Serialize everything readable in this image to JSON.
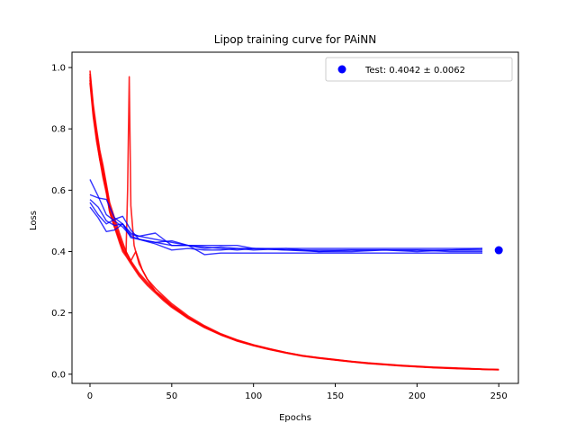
{
  "chart_data": {
    "type": "line",
    "title": "Lipop training curve for PAiNN",
    "xlabel": "Epochs",
    "ylabel": "Loss",
    "xlim": [
      -11,
      262
    ],
    "ylim": [
      -0.03,
      1.05
    ],
    "xticks": [
      0,
      50,
      100,
      150,
      200,
      250
    ],
    "yticks": [
      0.0,
      0.2,
      0.4,
      0.6,
      0.8,
      1.0
    ],
    "grid": false,
    "legend": {
      "placement": "upper right",
      "label": "Test: 0.4042 ± 0.0062"
    },
    "colors": {
      "train": "#ff0000",
      "validation": "#0000ff",
      "test": "#0000ff"
    },
    "train_curves": [
      {
        "x": [
          0,
          2,
          4,
          6,
          8,
          10,
          12,
          15,
          18,
          20,
          22,
          25,
          30,
          35,
          40,
          45,
          50,
          55,
          60,
          70,
          80,
          90,
          100,
          110,
          120,
          130,
          140,
          150,
          160,
          170,
          180,
          190,
          200,
          210,
          220,
          230,
          240,
          250
        ],
        "y": [
          0.98,
          0.86,
          0.79,
          0.72,
          0.67,
          0.61,
          0.55,
          0.5,
          0.45,
          0.42,
          0.4,
          0.37,
          0.33,
          0.3,
          0.27,
          0.25,
          0.225,
          0.205,
          0.185,
          0.155,
          0.13,
          0.11,
          0.095,
          0.082,
          0.07,
          0.06,
          0.053,
          0.047,
          0.041,
          0.036,
          0.032,
          0.028,
          0.025,
          0.022,
          0.02,
          0.018,
          0.016,
          0.015
        ]
      },
      {
        "x": [
          0,
          2,
          4,
          6,
          8,
          10,
          12,
          15,
          18,
          20,
          22,
          23,
          24,
          25,
          27,
          30,
          33,
          35,
          40,
          45,
          50,
          55,
          60,
          70,
          80,
          90,
          100,
          110,
          120,
          130,
          140,
          150,
          160,
          170,
          180,
          190,
          200,
          210,
          220,
          230,
          240,
          250
        ],
        "y": [
          0.96,
          0.85,
          0.77,
          0.71,
          0.65,
          0.6,
          0.54,
          0.49,
          0.44,
          0.41,
          0.39,
          0.6,
          0.97,
          0.55,
          0.42,
          0.36,
          0.33,
          0.31,
          0.27,
          0.245,
          0.222,
          0.205,
          0.185,
          0.155,
          0.13,
          0.11,
          0.094,
          0.081,
          0.07,
          0.06,
          0.053,
          0.047,
          0.041,
          0.036,
          0.032,
          0.028,
          0.025,
          0.022,
          0.02,
          0.018,
          0.016,
          0.015
        ]
      },
      {
        "x": [
          0,
          2,
          4,
          6,
          8,
          10,
          12,
          15,
          18,
          20,
          22,
          25,
          28,
          30,
          32,
          35,
          40,
          45,
          50,
          55,
          60,
          70,
          80,
          90,
          100,
          110,
          120,
          130,
          140,
          150,
          160,
          170,
          180,
          190,
          200,
          210,
          220,
          230,
          240,
          250
        ],
        "y": [
          0.99,
          0.88,
          0.8,
          0.73,
          0.68,
          0.62,
          0.56,
          0.51,
          0.46,
          0.43,
          0.4,
          0.37,
          0.4,
          0.37,
          0.34,
          0.31,
          0.28,
          0.255,
          0.23,
          0.21,
          0.19,
          0.158,
          0.132,
          0.112,
          0.096,
          0.083,
          0.071,
          0.061,
          0.054,
          0.048,
          0.042,
          0.037,
          0.033,
          0.029,
          0.026,
          0.023,
          0.021,
          0.019,
          0.017,
          0.015
        ]
      },
      {
        "x": [
          0,
          2,
          4,
          6,
          8,
          10,
          12,
          15,
          18,
          20,
          22,
          25,
          30,
          35,
          40,
          45,
          50,
          55,
          60,
          70,
          80,
          90,
          100,
          110,
          120,
          130,
          140,
          150,
          160,
          170,
          180,
          190,
          200,
          210,
          220,
          230,
          240,
          250
        ],
        "y": [
          0.97,
          0.85,
          0.78,
          0.7,
          0.66,
          0.6,
          0.53,
          0.48,
          0.43,
          0.4,
          0.385,
          0.36,
          0.32,
          0.29,
          0.265,
          0.24,
          0.218,
          0.2,
          0.182,
          0.152,
          0.128,
          0.108,
          0.093,
          0.08,
          0.069,
          0.059,
          0.052,
          0.046,
          0.04,
          0.035,
          0.031,
          0.027,
          0.024,
          0.021,
          0.019,
          0.017,
          0.016,
          0.014
        ]
      },
      {
        "x": [
          0,
          2,
          4,
          6,
          8,
          10,
          12,
          15,
          18,
          20,
          22,
          25,
          30,
          35,
          40,
          45,
          50,
          55,
          60,
          70,
          80,
          90,
          100,
          110,
          120,
          130,
          140,
          150,
          160,
          170,
          180,
          190,
          200,
          210,
          220,
          230,
          240,
          250
        ],
        "y": [
          0.95,
          0.84,
          0.76,
          0.7,
          0.64,
          0.59,
          0.53,
          0.48,
          0.44,
          0.41,
          0.39,
          0.365,
          0.325,
          0.295,
          0.27,
          0.245,
          0.222,
          0.203,
          0.184,
          0.154,
          0.129,
          0.109,
          0.094,
          0.081,
          0.07,
          0.06,
          0.053,
          0.047,
          0.041,
          0.036,
          0.032,
          0.028,
          0.025,
          0.022,
          0.02,
          0.018,
          0.016,
          0.015
        ]
      }
    ],
    "validation_curves": [
      {
        "x": [
          0,
          5,
          10,
          15,
          20,
          25,
          30,
          40,
          50,
          60,
          70,
          80,
          90,
          100,
          120,
          140,
          160,
          180,
          200,
          220,
          240
        ],
        "y": [
          0.635,
          0.58,
          0.52,
          0.5,
          0.48,
          0.45,
          0.44,
          0.43,
          0.42,
          0.42,
          0.415,
          0.41,
          0.405,
          0.41,
          0.405,
          0.405,
          0.405,
          0.405,
          0.405,
          0.405,
          0.405
        ]
      },
      {
        "x": [
          0,
          5,
          10,
          15,
          20,
          25,
          30,
          40,
          50,
          60,
          70,
          80,
          90,
          100,
          120,
          140,
          160,
          180,
          200,
          220,
          240
        ],
        "y": [
          0.585,
          0.575,
          0.57,
          0.51,
          0.49,
          0.46,
          0.45,
          0.46,
          0.42,
          0.42,
          0.39,
          0.395,
          0.395,
          0.395,
          0.395,
          0.395,
          0.395,
          0.395,
          0.395,
          0.395,
          0.395
        ]
      },
      {
        "x": [
          0,
          5,
          10,
          15,
          20,
          25,
          30,
          40,
          50,
          60,
          70,
          80,
          90,
          100,
          120,
          140,
          160,
          180,
          200,
          220,
          240
        ],
        "y": [
          0.56,
          0.52,
          0.49,
          0.505,
          0.515,
          0.47,
          0.44,
          0.43,
          0.435,
          0.42,
          0.42,
          0.42,
          0.42,
          0.41,
          0.41,
          0.4,
          0.405,
          0.405,
          0.405,
          0.4,
          0.4
        ]
      },
      {
        "x": [
          0,
          5,
          10,
          15,
          20,
          25,
          30,
          40,
          50,
          60,
          70,
          80,
          90,
          100,
          120,
          140,
          160,
          180,
          200,
          220,
          240
        ],
        "y": [
          0.545,
          0.51,
          0.465,
          0.47,
          0.49,
          0.445,
          0.44,
          0.425,
          0.405,
          0.41,
          0.405,
          0.405,
          0.41,
          0.405,
          0.41,
          0.41,
          0.41,
          0.41,
          0.41,
          0.41,
          0.41
        ]
      },
      {
        "x": [
          0,
          5,
          10,
          15,
          20,
          25,
          30,
          40,
          50,
          60,
          70,
          80,
          90,
          100,
          120,
          140,
          160,
          180,
          200,
          220,
          240
        ],
        "y": [
          0.57,
          0.545,
          0.5,
          0.485,
          0.49,
          0.455,
          0.45,
          0.44,
          0.43,
          0.42,
          0.41,
          0.415,
          0.41,
          0.41,
          0.405,
          0.4,
          0.4,
          0.405,
          0.4,
          0.405,
          0.41
        ]
      }
    ],
    "test_point": {
      "x": 250,
      "y": 0.4042,
      "err": 0.0062
    }
  }
}
